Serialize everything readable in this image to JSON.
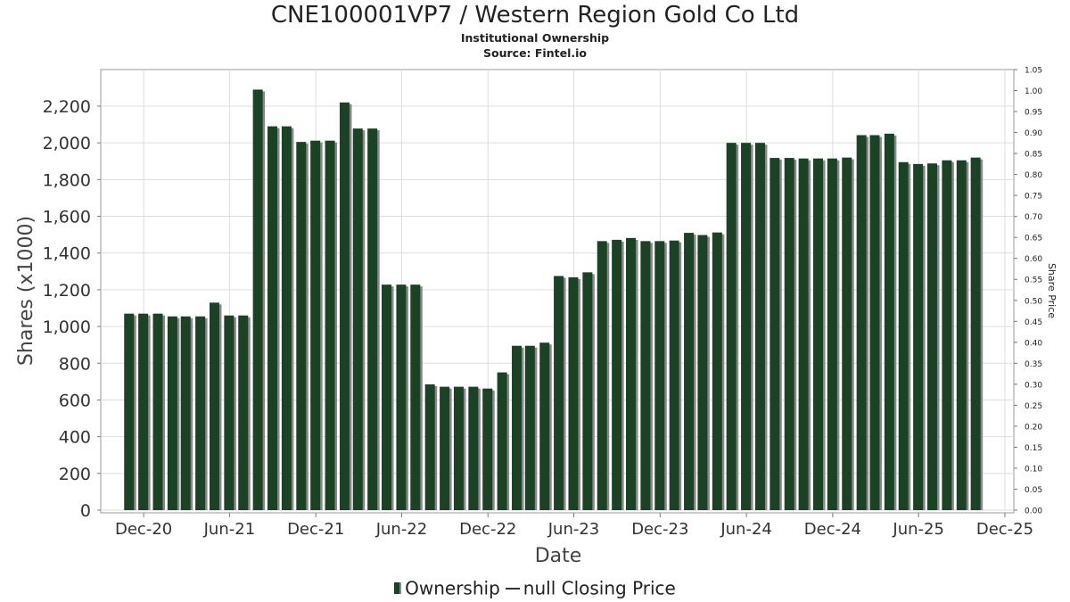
{
  "chart_data": {
    "type": "bar",
    "title": "CNE100001VP7 / Western Region Gold Co Ltd",
    "subtitle": "Institutional Ownership",
    "source": "Source: Fintel.io",
    "xlabel": "Date",
    "ylabel": "Shares (x1000)",
    "y2label": "Share Price",
    "ylim": [
      0,
      2400
    ],
    "y2lim": [
      0,
      1.05
    ],
    "x_range": [
      "2020-09-01",
      "2025-12-20"
    ],
    "grid": true,
    "legend_position": "bottom",
    "bar_color": "#1b4224",
    "shadow_color": "#888888",
    "x_ticks": [
      {
        "label": "Dec-20",
        "date": "2020-12-01"
      },
      {
        "label": "Jun-21",
        "date": "2021-06-01"
      },
      {
        "label": "Dec-21",
        "date": "2021-12-01"
      },
      {
        "label": "Jun-22",
        "date": "2022-06-01"
      },
      {
        "label": "Dec-22",
        "date": "2022-12-01"
      },
      {
        "label": "Jun-23",
        "date": "2023-06-01"
      },
      {
        "label": "Dec-23",
        "date": "2023-12-01"
      },
      {
        "label": "Jun-24",
        "date": "2024-06-01"
      },
      {
        "label": "Dec-24",
        "date": "2024-12-01"
      },
      {
        "label": "Jun-25",
        "date": "2025-06-01"
      },
      {
        "label": "Dec-25",
        "date": "2025-12-01"
      }
    ],
    "y_ticks": [
      "0",
      "200",
      "400",
      "600",
      "800",
      "1,000",
      "1,200",
      "1,400",
      "1,600",
      "1,800",
      "2,000",
      "2,200"
    ],
    "y2_ticks": [
      "0.00",
      "0.05",
      "0.10",
      "0.15",
      "0.20",
      "0.25",
      "0.30",
      "0.35",
      "0.40",
      "0.45",
      "0.50",
      "0.55",
      "0.60",
      "0.65",
      "0.70",
      "0.75",
      "0.80",
      "0.85",
      "0.90",
      "0.95",
      "1.00",
      "1.05"
    ],
    "series": [
      {
        "name": "Ownership",
        "dates": [
          "2020-10-31",
          "2020-11-30",
          "2020-12-31",
          "2021-01-31",
          "2021-02-28",
          "2021-03-31",
          "2021-04-30",
          "2021-05-31",
          "2021-06-30",
          "2021-07-31",
          "2021-08-31",
          "2021-09-30",
          "2021-10-31",
          "2021-11-30",
          "2021-12-31",
          "2022-01-31",
          "2022-02-28",
          "2022-03-31",
          "2022-04-30",
          "2022-05-31",
          "2022-06-30",
          "2022-07-31",
          "2022-08-31",
          "2022-09-30",
          "2022-10-31",
          "2022-11-30",
          "2022-12-31",
          "2023-01-31",
          "2023-02-28",
          "2023-03-31",
          "2023-04-30",
          "2023-05-31",
          "2023-06-30",
          "2023-07-31",
          "2023-08-31",
          "2023-09-30",
          "2023-10-31",
          "2023-11-30",
          "2023-12-31",
          "2024-01-31",
          "2024-02-29",
          "2024-03-31",
          "2024-04-30",
          "2024-05-31",
          "2024-06-30",
          "2024-07-31",
          "2024-08-31",
          "2024-09-30",
          "2024-10-31",
          "2024-11-30",
          "2024-12-31",
          "2025-01-31",
          "2025-02-28",
          "2025-03-31",
          "2025-04-30",
          "2025-05-31",
          "2025-06-30",
          "2025-07-31",
          "2025-08-31",
          "2025-09-30"
        ],
        "values": [
          1070,
          1070,
          1070,
          1055,
          1055,
          1055,
          1130,
          1060,
          1060,
          2290,
          2090,
          2090,
          2005,
          2012,
          2012,
          2220,
          2078,
          2078,
          1228,
          1228,
          1228,
          685,
          672,
          672,
          672,
          662,
          750,
          895,
          895,
          912,
          1275,
          1268,
          1295,
          1465,
          1472,
          1482,
          1465,
          1465,
          1468,
          1510,
          1498,
          1512,
          2000,
          2000,
          2000,
          1918,
          1918,
          1915,
          1915,
          1915,
          1920,
          2042,
          2042,
          2050,
          1895,
          1885,
          1888,
          1905,
          1905,
          1920
        ]
      },
      {
        "name": "null Closing Price",
        "values": []
      }
    ]
  }
}
